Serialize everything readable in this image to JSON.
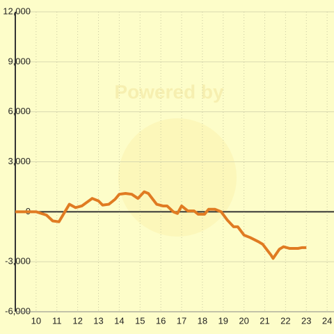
{
  "chart_data": {
    "type": "line",
    "watermark": "Powered by",
    "x": [
      9.0,
      9.5,
      10.0,
      10.5,
      10.8,
      11.1,
      11.6,
      11.9,
      12.2,
      12.7,
      13.0,
      13.2,
      13.5,
      13.8,
      14.0,
      14.3,
      14.6,
      14.9,
      15.2,
      15.4,
      15.8,
      16.1,
      16.3,
      16.6,
      16.8,
      17.0,
      17.3,
      17.6,
      17.8,
      18.1,
      18.3,
      18.6,
      18.9,
      19.2,
      19.5,
      19.7,
      20.0,
      20.3,
      20.7,
      20.9,
      21.3,
      21.4,
      21.7,
      21.9,
      22.2,
      22.6,
      22.8,
      23.0
    ],
    "series": [
      {
        "color": "#e07b22",
        "values": [
          0,
          0,
          0,
          -200,
          -550,
          -600,
          450,
          250,
          350,
          800,
          650,
          400,
          450,
          750,
          1050,
          1100,
          1050,
          800,
          1200,
          1100,
          450,
          350,
          350,
          0,
          -100,
          350,
          50,
          50,
          -150,
          -150,
          150,
          150,
          0,
          -500,
          -900,
          -900,
          -1400,
          -1550,
          -1800,
          -1950,
          -2600,
          -2800,
          -2250,
          -2100,
          -2200,
          -2200,
          -2150,
          -2150
        ]
      }
    ],
    "xlim": [
      9,
      24.33
    ],
    "xticks": [
      10,
      11,
      12,
      13,
      14,
      15,
      16,
      17,
      18,
      19,
      20,
      21,
      22,
      23,
      24
    ],
    "ylim": [
      -6000,
      12000
    ],
    "yticks": [
      {
        "value": 12000,
        "label": "12,000"
      },
      {
        "value": 9000,
        "label": "9,000"
      },
      {
        "value": 6000,
        "label": "6,000"
      },
      {
        "value": 3000,
        "label": "3,000"
      },
      0,
      {
        "value": -3000,
        "label": "-3,000"
      },
      {
        "value": -6000,
        "label": "-6,000"
      }
    ],
    "grid": true
  }
}
